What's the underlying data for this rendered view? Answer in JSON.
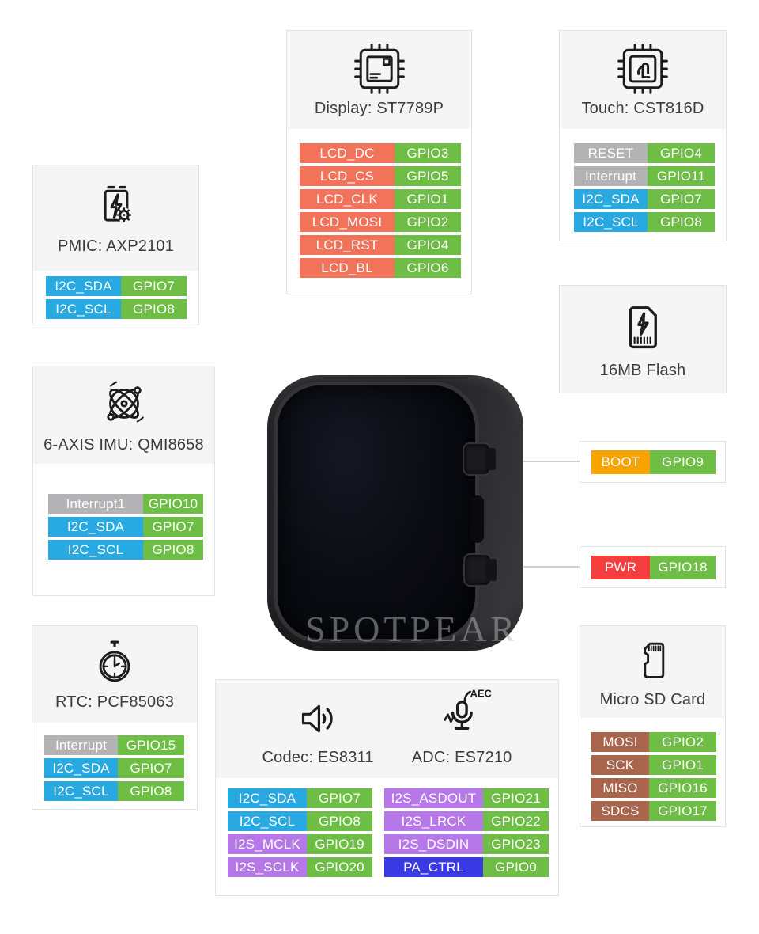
{
  "palette": {
    "gpio": "#6ebe45",
    "lcd": "#f2735a",
    "i2c": "#29a9e1",
    "signal_gray": "#b3b2b4",
    "boot": "#f6a500",
    "pwr": "#f43f3e",
    "i2s": "#b678e8",
    "pa": "#3a3ae4",
    "sd": "#a9664c"
  },
  "components": {
    "display": {
      "title": "Display: ST7789P",
      "pins": [
        {
          "label": "LCD_DC",
          "gpio": "GPIO3",
          "color": "lcd"
        },
        {
          "label": "LCD_CS",
          "gpio": "GPIO5",
          "color": "lcd"
        },
        {
          "label": "LCD_CLK",
          "gpio": "GPIO1",
          "color": "lcd"
        },
        {
          "label": "LCD_MOSI",
          "gpio": "GPIO2",
          "color": "lcd"
        },
        {
          "label": "LCD_RST",
          "gpio": "GPIO4",
          "color": "lcd"
        },
        {
          "label": "LCD_BL",
          "gpio": "GPIO6",
          "color": "lcd"
        }
      ]
    },
    "touch": {
      "title": "Touch: CST816D",
      "pins": [
        {
          "label": "RESET",
          "gpio": "GPIO4",
          "color": "signal_gray"
        },
        {
          "label": "Interrupt",
          "gpio": "GPIO11",
          "color": "signal_gray"
        },
        {
          "label": "I2C_SDA",
          "gpio": "GPIO7",
          "color": "i2c"
        },
        {
          "label": "I2C_SCL",
          "gpio": "GPIO8",
          "color": "i2c"
        }
      ]
    },
    "pmic": {
      "title": "PMIC: AXP2101",
      "pins": [
        {
          "label": "I2C_SDA",
          "gpio": "GPIO7",
          "color": "i2c"
        },
        {
          "label": "I2C_SCL",
          "gpio": "GPIO8",
          "color": "i2c"
        }
      ]
    },
    "imu": {
      "title": "6-AXIS IMU: QMI8658",
      "pins": [
        {
          "label": "Interrupt1",
          "gpio": "GPIO10",
          "color": "signal_gray"
        },
        {
          "label": "I2C_SDA",
          "gpio": "GPIO7",
          "color": "i2c"
        },
        {
          "label": "I2C_SCL",
          "gpio": "GPIO8",
          "color": "i2c"
        }
      ]
    },
    "flash": {
      "title": "16MB Flash"
    },
    "rtc": {
      "title": "RTC: PCF85063",
      "pins": [
        {
          "label": "Interrupt",
          "gpio": "GPIO15",
          "color": "signal_gray"
        },
        {
          "label": "I2C_SDA",
          "gpio": "GPIO7",
          "color": "i2c"
        },
        {
          "label": "I2C_SCL",
          "gpio": "GPIO8",
          "color": "i2c"
        }
      ]
    },
    "boot": {
      "pins": [
        {
          "label": "BOOT",
          "gpio": "GPIO9",
          "color": "boot"
        }
      ]
    },
    "pwr": {
      "pins": [
        {
          "label": "PWR",
          "gpio": "GPIO18",
          "color": "pwr"
        }
      ]
    },
    "codec": {
      "title": "Codec: ES8311",
      "adc_title": "ADC: ES7210",
      "aec_badge": "AEC",
      "pins_left": [
        {
          "label": "I2C_SDA",
          "gpio": "GPIO7",
          "color": "i2c"
        },
        {
          "label": "I2C_SCL",
          "gpio": "GPIO8",
          "color": "i2c"
        },
        {
          "label": "I2S_MCLK",
          "gpio": "GPIO19",
          "color": "i2s"
        },
        {
          "label": "I2S_SCLK",
          "gpio": "GPIO20",
          "color": "i2s"
        }
      ],
      "pins_right": [
        {
          "label": "I2S_ASDOUT",
          "gpio": "GPIO21",
          "color": "i2s"
        },
        {
          "label": "I2S_LRCK",
          "gpio": "GPIO22",
          "color": "i2s"
        },
        {
          "label": "I2S_DSDIN",
          "gpio": "GPIO23",
          "color": "i2s"
        },
        {
          "label": "PA_CTRL",
          "gpio": "GPIO0",
          "color": "pa"
        }
      ]
    },
    "sdcard": {
      "title": "Micro SD Card",
      "pins": [
        {
          "label": "MOSI",
          "gpio": "GPIO2",
          "color": "sd"
        },
        {
          "label": "SCK",
          "gpio": "GPIO1",
          "color": "sd"
        },
        {
          "label": "MISO",
          "gpio": "GPIO16",
          "color": "sd"
        },
        {
          "label": "SDCS",
          "gpio": "GPIO17",
          "color": "sd"
        }
      ]
    }
  },
  "device": {
    "watermark": "SPOTPEAR"
  }
}
